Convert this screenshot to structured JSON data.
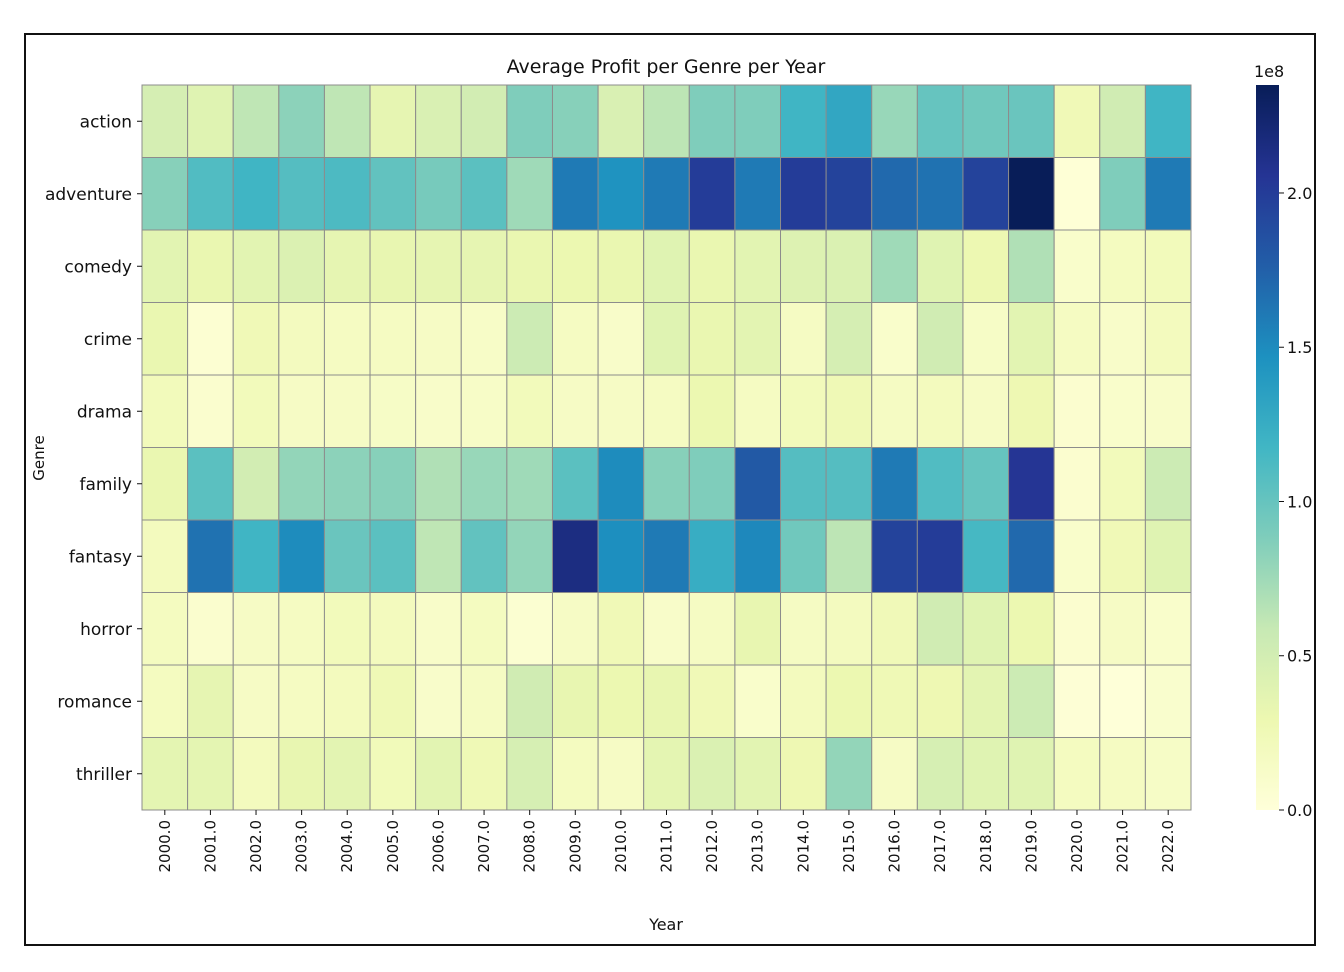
{
  "chart_data": {
    "type": "heatmap",
    "title": "Average Profit per Genre per Year",
    "xlabel": "Year",
    "ylabel": "Genre",
    "x": [
      "2000.0",
      "2001.0",
      "2002.0",
      "2003.0",
      "2004.0",
      "2005.0",
      "2006.0",
      "2007.0",
      "2008.0",
      "2009.0",
      "2010.0",
      "2011.0",
      "2012.0",
      "2013.0",
      "2014.0",
      "2015.0",
      "2016.0",
      "2017.0",
      "2018.0",
      "2019.0",
      "2020.0",
      "2021.0",
      "2022.0"
    ],
    "y": [
      "action",
      "adventure",
      "comedy",
      "crime",
      "drama",
      "family",
      "fantasy",
      "horror",
      "romance",
      "thriller"
    ],
    "values": [
      [
        48000000,
        40000000,
        62000000,
        83000000,
        62000000,
        35000000,
        45000000,
        50000000,
        88000000,
        85000000,
        45000000,
        63000000,
        88000000,
        88000000,
        118000000,
        130000000,
        78000000,
        100000000,
        95000000,
        98000000,
        25000000,
        52000000,
        118000000
      ],
      [
        85000000,
        110000000,
        118000000,
        108000000,
        112000000,
        102000000,
        92000000,
        105000000,
        75000000,
        160000000,
        145000000,
        160000000,
        200000000,
        160000000,
        200000000,
        195000000,
        170000000,
        165000000,
        195000000,
        235000000,
        2000000,
        88000000,
        160000000
      ],
      [
        38000000,
        32000000,
        38000000,
        43000000,
        35000000,
        33000000,
        35000000,
        35000000,
        32000000,
        30000000,
        32000000,
        40000000,
        32000000,
        38000000,
        42000000,
        44000000,
        75000000,
        40000000,
        29000000,
        68000000,
        10000000,
        18000000,
        22000000
      ],
      [
        32000000,
        5000000,
        25000000,
        19000000,
        17000000,
        17000000,
        15000000,
        13000000,
        55000000,
        17000000,
        12000000,
        40000000,
        32000000,
        37000000,
        16000000,
        48000000,
        10000000,
        52000000,
        14000000,
        38000000,
        17000000,
        12000000,
        20000000
      ],
      [
        22000000,
        8000000,
        22000000,
        15000000,
        15000000,
        14000000,
        12000000,
        13000000,
        22000000,
        15000000,
        15000000,
        17000000,
        30000000,
        17000000,
        22000000,
        26000000,
        16000000,
        20000000,
        15000000,
        28000000,
        7000000,
        10000000,
        12000000
      ],
      [
        32000000,
        105000000,
        50000000,
        80000000,
        83000000,
        85000000,
        68000000,
        78000000,
        75000000,
        105000000,
        150000000,
        85000000,
        88000000,
        180000000,
        108000000,
        108000000,
        160000000,
        110000000,
        100000000,
        205000000,
        7000000,
        22000000,
        55000000
      ],
      [
        20000000,
        165000000,
        118000000,
        150000000,
        98000000,
        105000000,
        62000000,
        102000000,
        80000000,
        215000000,
        148000000,
        160000000,
        125000000,
        152000000,
        95000000,
        63000000,
        195000000,
        200000000,
        115000000,
        170000000,
        10000000,
        25000000,
        40000000
      ],
      [
        18000000,
        8000000,
        15000000,
        17000000,
        22000000,
        20000000,
        12000000,
        18000000,
        6000000,
        15000000,
        25000000,
        12000000,
        16000000,
        33000000,
        16000000,
        19000000,
        24000000,
        52000000,
        40000000,
        30000000,
        7000000,
        15000000,
        10000000
      ],
      [
        18000000,
        35000000,
        15000000,
        17000000,
        20000000,
        26000000,
        11000000,
        16000000,
        52000000,
        33000000,
        30000000,
        33000000,
        25000000,
        10000000,
        20000000,
        30000000,
        26000000,
        28000000,
        37000000,
        55000000,
        3000000,
        1000000,
        9000000
      ],
      [
        36000000,
        36000000,
        20000000,
        33000000,
        37000000,
        23000000,
        38000000,
        26000000,
        47000000,
        18000000,
        15000000,
        36000000,
        44000000,
        38000000,
        28000000,
        80000000,
        15000000,
        47000000,
        40000000,
        40000000,
        18000000,
        17000000,
        14000000
      ]
    ],
    "colorbar": {
      "ticks": [
        "0.0",
        "0.5",
        "1.0",
        "1.5",
        "2.0"
      ],
      "tick_values": [
        0,
        0.5,
        1.0,
        1.5,
        2.0
      ],
      "multiplier_label": "1e8",
      "min": 0,
      "max": 235000000
    },
    "colormap": "YlGnBu",
    "colormap_stops": [
      "#ffffd9",
      "#edf8b1",
      "#c7e9b4",
      "#7fcdbb",
      "#41b6c4",
      "#1d91c0",
      "#225ea8",
      "#253494",
      "#081d58"
    ],
    "grid": true
  }
}
